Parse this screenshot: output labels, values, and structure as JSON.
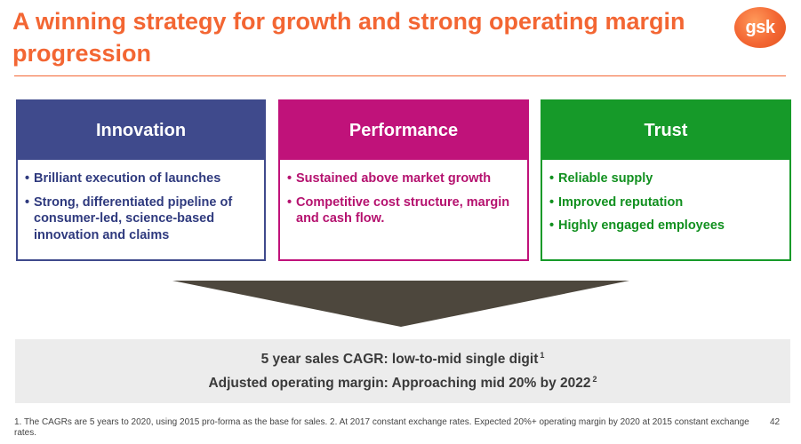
{
  "title": "A winning strategy for growth and strong operating margin progression",
  "logo": {
    "text": "gsk"
  },
  "colors": {
    "accent": "#f36633",
    "innovation": "#3f4a8c",
    "performance": "#c0127a",
    "trust": "#169a29"
  },
  "pillars": [
    {
      "heading": "Innovation",
      "items": [
        "Brilliant execution of launches",
        "Strong, differentiated pipeline of consumer-led, science-based innovation and claims"
      ]
    },
    {
      "heading": "Performance",
      "items": [
        "Sustained above market growth",
        "Competitive cost structure, margin and cash flow."
      ]
    },
    {
      "heading": "Trust",
      "items": [
        "Reliable supply",
        "Improved reputation",
        "Highly engaged employees"
      ]
    }
  ],
  "summary": {
    "cagr_text": "5 year sales CAGR:  low-to-mid single digit",
    "cagr_ref": "1",
    "margin_text": "Adjusted operating margin: Approaching mid 20% by 2022",
    "margin_ref": "2"
  },
  "footnote": "1. The CAGRs are 5 years to 2020, using 2015 pro-forma as the base for sales. 2. At 2017 constant exchange rates. Expected 20%+ operating margin by 2020 at 2015 constant exchange rates.",
  "page_number": "42"
}
